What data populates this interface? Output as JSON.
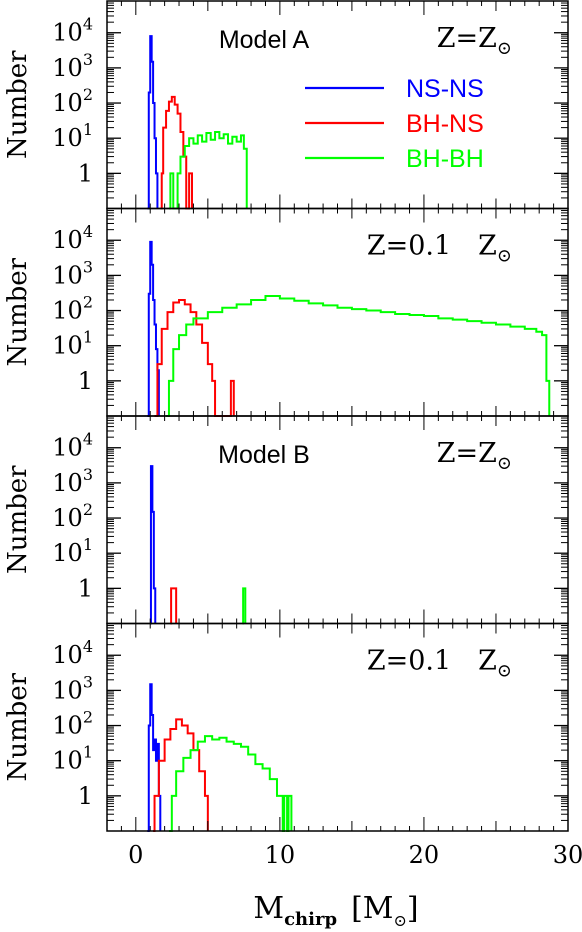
{
  "chart_data": {
    "type": "line",
    "layout": "4 stacked histogram panels sharing the x-axis",
    "xlabel": "M",
    "xlabel_sub": "chirp",
    "xlabel_unit": "[M",
    "xlabel_unit_close": "]",
    "ylabel": "Number",
    "xlim": [
      -2,
      30
    ],
    "x_ticks": [
      0,
      10,
      20,
      30
    ],
    "y_scale": "log",
    "ylim": [
      0.1,
      80000
    ],
    "y_ticks": [
      {
        "value": 1,
        "base": "1",
        "exp": ""
      },
      {
        "value": 10,
        "base": "10",
        "exp": "1"
      },
      {
        "value": 100,
        "base": "10",
        "exp": "2"
      },
      {
        "value": 1000,
        "base": "10",
        "exp": "3"
      },
      {
        "value": 10000,
        "base": "10",
        "exp": "4"
      }
    ],
    "legend": {
      "placement": "top-right of first panel",
      "entries": [
        {
          "name": "NS-NS",
          "color": "#0000ff"
        },
        {
          "name": "BH-NS",
          "color": "#ff0000"
        },
        {
          "name": "BH-BH",
          "color": "#00ff00"
        }
      ]
    },
    "colors": {
      "NS-NS": "#0000ff",
      "BH-NS": "#ff0000",
      "BH-BH": "#00ff00"
    },
    "panels": [
      {
        "model_label": "Model A",
        "z_prefix": "Z=Z",
        "z_sub": "⊙",
        "series": [
          {
            "name": "NS-NS",
            "points": [
              [
                0.8,
                0.1
              ],
              [
                0.9,
                200
              ],
              [
                1.0,
                8000
              ],
              [
                1.1,
                1500
              ],
              [
                1.2,
                100
              ],
              [
                1.3,
                10
              ],
              [
                1.4,
                1
              ],
              [
                1.5,
                0.1
              ]
            ]
          },
          {
            "name": "BH-NS",
            "points": [
              [
                1.7,
                0.1
              ],
              [
                1.8,
                1
              ],
              [
                1.9,
                20
              ],
              [
                2.1,
                60
              ],
              [
                2.3,
                110
              ],
              [
                2.5,
                150
              ],
              [
                2.7,
                90
              ],
              [
                2.9,
                50
              ],
              [
                3.1,
                15
              ],
              [
                3.3,
                3
              ],
              [
                3.5,
                0.1
              ],
              [
                3.7,
                1
              ],
              [
                3.9,
                0.1
              ]
            ]
          },
          {
            "name": "BH-BH",
            "points": [
              [
                2.3,
                0.1
              ],
              [
                2.4,
                1
              ],
              [
                2.6,
                0.1
              ],
              [
                2.9,
                1
              ],
              [
                3.1,
                3
              ],
              [
                3.4,
                6
              ],
              [
                3.7,
                10
              ],
              [
                4.0,
                7
              ],
              [
                4.3,
                12
              ],
              [
                4.6,
                8
              ],
              [
                4.9,
                14
              ],
              [
                5.2,
                9
              ],
              [
                5.5,
                15
              ],
              [
                5.8,
                10
              ],
              [
                6.1,
                13
              ],
              [
                6.4,
                7
              ],
              [
                6.7,
                11
              ],
              [
                7.0,
                8
              ],
              [
                7.3,
                12
              ],
              [
                7.5,
                5
              ],
              [
                7.7,
                0.1
              ]
            ]
          }
        ]
      },
      {
        "model_label": "",
        "z_prefix": "Z=0.1 Z",
        "z_sub": "⊙",
        "series": [
          {
            "name": "NS-NS",
            "points": [
              [
                0.8,
                0.1
              ],
              [
                0.9,
                300
              ],
              [
                1.0,
                9000
              ],
              [
                1.1,
                2000
              ],
              [
                1.2,
                200
              ],
              [
                1.3,
                40
              ],
              [
                1.4,
                8
              ],
              [
                1.5,
                2
              ],
              [
                1.6,
                0.1
              ]
            ]
          },
          {
            "name": "BH-NS",
            "points": [
              [
                1.3,
                0.1
              ],
              [
                1.5,
                3
              ],
              [
                1.8,
                30
              ],
              [
                2.2,
                90
              ],
              [
                2.6,
                170
              ],
              [
                3.0,
                200
              ],
              [
                3.4,
                150
              ],
              [
                3.8,
                90
              ],
              [
                4.2,
                40
              ],
              [
                4.6,
                12
              ],
              [
                5.0,
                3
              ],
              [
                5.3,
                1
              ],
              [
                5.5,
                0.1
              ],
              [
                6.5,
                0.1
              ],
              [
                6.6,
                1
              ],
              [
                6.8,
                0.1
              ]
            ]
          },
          {
            "name": "BH-BH",
            "points": [
              [
                2.1,
                0.1
              ],
              [
                2.3,
                1
              ],
              [
                2.6,
                8
              ],
              [
                3.0,
                20
              ],
              [
                3.5,
                40
              ],
              [
                4.0,
                60
              ],
              [
                5.0,
                90
              ],
              [
                6.0,
                120
              ],
              [
                7.0,
                150
              ],
              [
                8.0,
                200
              ],
              [
                9.0,
                260
              ],
              [
                10.0,
                220
              ],
              [
                11.0,
                190
              ],
              [
                12.0,
                160
              ],
              [
                13.0,
                140
              ],
              [
                14.0,
                120
              ],
              [
                15.0,
                110
              ],
              [
                16.0,
                100
              ],
              [
                17.0,
                90
              ],
              [
                18.0,
                80
              ],
              [
                19.0,
                75
              ],
              [
                20.0,
                70
              ],
              [
                21.0,
                60
              ],
              [
                22.0,
                55
              ],
              [
                23.0,
                50
              ],
              [
                24.0,
                45
              ],
              [
                25.0,
                40
              ],
              [
                26.0,
                35
              ],
              [
                27.0,
                30
              ],
              [
                27.8,
                25
              ],
              [
                28.2,
                20
              ],
              [
                28.5,
                1
              ],
              [
                28.7,
                0.1
              ]
            ]
          }
        ]
      },
      {
        "model_label": "Model B",
        "z_prefix": "Z=Z",
        "z_sub": "⊙",
        "series": [
          {
            "name": "NS-NS",
            "points": [
              [
                1.0,
                0.1
              ],
              [
                1.05,
                3000
              ],
              [
                1.15,
                150
              ],
              [
                1.25,
                1
              ],
              [
                1.35,
                0.1
              ]
            ]
          },
          {
            "name": "BH-NS",
            "points": [
              [
                2.4,
                0.1
              ],
              [
                2.45,
                1
              ],
              [
                2.75,
                1
              ],
              [
                2.8,
                0.1
              ]
            ]
          },
          {
            "name": "BH-BH",
            "points": [
              [
                7.4,
                0.1
              ],
              [
                7.45,
                1
              ],
              [
                7.6,
                0.1
              ]
            ]
          }
        ]
      },
      {
        "model_label": "",
        "z_prefix": "Z=0.1 Z",
        "z_sub": "⊙",
        "series": [
          {
            "name": "NS-NS",
            "points": [
              [
                0.8,
                0.1
              ],
              [
                0.9,
                100
              ],
              [
                1.0,
                1500
              ],
              [
                1.1,
                200
              ],
              [
                1.2,
                20
              ],
              [
                1.3,
                40
              ],
              [
                1.4,
                10
              ],
              [
                1.5,
                30
              ],
              [
                1.6,
                1
              ],
              [
                1.7,
                0.1
              ]
            ]
          },
          {
            "name": "BH-NS",
            "points": [
              [
                1.2,
                0.1
              ],
              [
                1.3,
                1
              ],
              [
                1.6,
                10
              ],
              [
                2.0,
                40
              ],
              [
                2.4,
                80
              ],
              [
                2.8,
                150
              ],
              [
                3.2,
                100
              ],
              [
                3.6,
                60
              ],
              [
                4.0,
                20
              ],
              [
                4.4,
                5
              ],
              [
                4.8,
                1
              ],
              [
                5.0,
                0.1
              ]
            ]
          },
          {
            "name": "BH-BH",
            "points": [
              [
                2.3,
                0.1
              ],
              [
                2.5,
                1
              ],
              [
                2.8,
                5
              ],
              [
                3.3,
                12
              ],
              [
                3.8,
                20
              ],
              [
                4.3,
                35
              ],
              [
                4.8,
                50
              ],
              [
                5.3,
                40
              ],
              [
                5.8,
                45
              ],
              [
                6.3,
                35
              ],
              [
                6.8,
                30
              ],
              [
                7.3,
                25
              ],
              [
                7.8,
                15
              ],
              [
                8.3,
                8
              ],
              [
                8.8,
                6
              ],
              [
                9.3,
                3
              ],
              [
                9.8,
                1
              ],
              [
                10.2,
                0.1
              ],
              [
                10.3,
                1
              ],
              [
                10.5,
                0.1
              ],
              [
                10.6,
                1
              ],
              [
                10.8,
                0.1
              ]
            ]
          }
        ]
      }
    ]
  }
}
